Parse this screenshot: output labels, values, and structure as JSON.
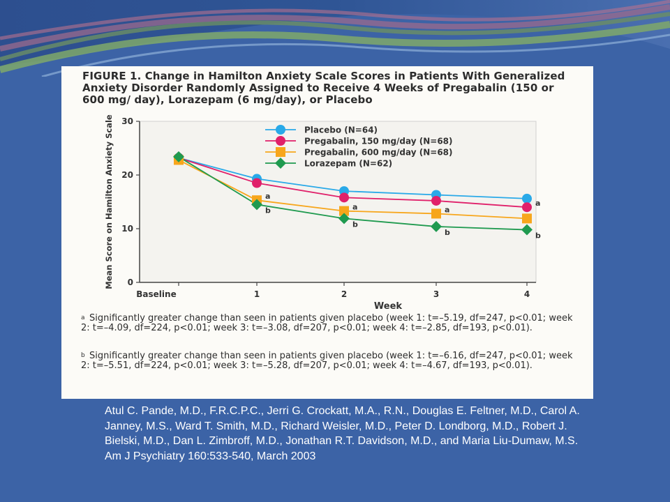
{
  "figure": {
    "title": "FIGURE 1. Change in Hamilton Anxiety Scale Scores in Patients With Generalized Anxiety Disorder Randomly Assigned to Receive 4 Weeks of Pregabalin (150 or 600 mg/ day), Lorazepam (6 mg/day), or Placebo",
    "footnote_a_mark": "a",
    "footnote_a": "Significantly greater change than seen in patients given placebo (week 1: t=–5.19, df=247, p<0.01; week 2: t=–4.09, df=224, p<0.01; week 3: t=–3.08, df=207, p<0.01; week 4: t=–2.85, df=193, p<0.01).",
    "footnote_b_mark": "b",
    "footnote_b": "Significantly greater change than seen in patients given placebo (week 1: t=–6.16, df=247, p<0.01; week 2: t=–5.51, df=224, p<0.01; week 3: t=–5.28, df=207, p<0.01; week 4: t=–4.67, df=193, p<0.01)."
  },
  "citation": "Atul C. Pande, M.D., F.R.C.P.C., Jerri G. Crockatt, M.A., R.N., Douglas E. Feltner, M.D., Carol A. Janney, M.S., Ward T. Smith, M.D., Richard Weisler, M.D., Peter D. Londborg, M.D., Robert J. Bielski, M.D., Dan L. Zimbroff, M.D., Jonathan R.T. Davidson, M.D., and Maria Liu-Dumaw, M.S. Am J Psychiatry 160:533-540, March 2003",
  "colors": {
    "background": "#3c63a6",
    "panel": "#fcfbf7",
    "placebo": "#29a9e8",
    "pregabalin_150": "#e0206a",
    "pregabalin_600": "#f7a61c",
    "lorazepam": "#1f9a4f"
  },
  "chart_data": {
    "type": "line",
    "xlabel": "Week",
    "ylabel": "Mean Score on Hamilton Anxiety Scale",
    "categories": [
      "Baseline",
      "1",
      "2",
      "3",
      "4"
    ],
    "yticks": [
      0,
      10,
      20,
      30
    ],
    "ylim": [
      0,
      30
    ],
    "grid": false,
    "legend_position": "top-right",
    "series": [
      {
        "name": "Placebo (N=64)",
        "marker": "circle",
        "color": "#29a9e8",
        "values": [
          23.2,
          19.3,
          17.0,
          16.3,
          15.6
        ],
        "annotations": [
          "",
          "",
          "",
          "",
          ""
        ]
      },
      {
        "name": "Pregabalin, 150 mg/day (N=68)",
        "marker": "circle",
        "color": "#e0206a",
        "values": [
          23.2,
          18.5,
          15.8,
          15.2,
          14.0
        ],
        "annotations": [
          "",
          "",
          "",
          "",
          "a"
        ]
      },
      {
        "name": "Pregabalin, 600 mg/day (N=68)",
        "marker": "square",
        "color": "#f7a61c",
        "values": [
          22.8,
          15.3,
          13.3,
          12.8,
          11.9
        ],
        "annotations": [
          "",
          "a",
          "a",
          "a",
          ""
        ]
      },
      {
        "name": "Lorazepam (N=62)",
        "marker": "diamond",
        "color": "#1f9a4f",
        "values": [
          23.4,
          14.5,
          11.9,
          10.4,
          9.8
        ],
        "annotations": [
          "",
          "b",
          "b",
          "b",
          "b"
        ]
      }
    ]
  }
}
